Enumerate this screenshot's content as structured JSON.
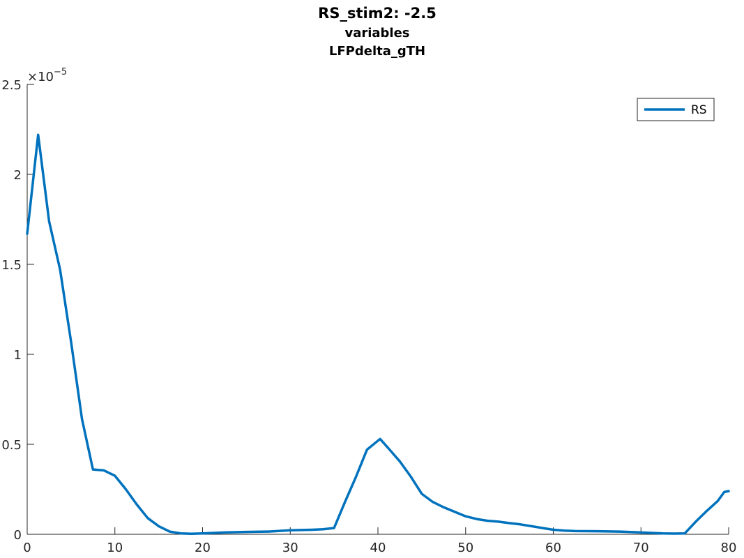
{
  "chart_data": {
    "type": "line",
    "title_lines": [
      "RS_stim2: -2.5",
      "variables",
      "LFPdelta_gTH"
    ],
    "xlabel": "",
    "ylabel": "",
    "xlim": [
      0,
      80
    ],
    "ylim": [
      0,
      2.5
    ],
    "y_exponent_label": "×10",
    "y_exponent_power": "−5",
    "xticks": [
      0,
      10,
      20,
      30,
      40,
      50,
      60,
      70,
      80
    ],
    "yticks": [
      0,
      0.5,
      1,
      1.5,
      2,
      2.5
    ],
    "xtick_labels": [
      "0",
      "10",
      "20",
      "30",
      "40",
      "50",
      "60",
      "70",
      "80"
    ],
    "ytick_labels": [
      "0",
      "0.5",
      "1",
      "1.5",
      "2",
      "2.5"
    ],
    "grid": false,
    "legend_position": "top-right",
    "line_color": "#0072BD",
    "series": [
      {
        "name": "RS",
        "x": [
          0,
          1.25,
          2.5,
          3.75,
          5,
          6.25,
          7.5,
          8.75,
          10,
          11.25,
          12.5,
          13.75,
          15,
          16.25,
          17.5,
          18.75,
          20,
          22.5,
          25,
          27.5,
          30,
          32.5,
          33.75,
          35,
          36.25,
          37.5,
          38.75,
          40.25,
          41.25,
          42.5,
          43.75,
          45,
          46.25,
          47.5,
          48.75,
          50,
          51.25,
          52.5,
          53.75,
          55,
          56.25,
          57.5,
          58.75,
          60,
          61.25,
          62.5,
          65,
          67.5,
          70,
          72.5,
          73.75,
          75,
          76.25,
          77.5,
          78.75,
          79.5,
          80
        ],
        "values": [
          1.67,
          2.22,
          1.74,
          1.47,
          1.07,
          0.64,
          0.36,
          0.355,
          0.325,
          0.25,
          0.165,
          0.09,
          0.045,
          0.015,
          0.005,
          0.003,
          0.005,
          0.01,
          0.013,
          0.015,
          0.022,
          0.025,
          0.028,
          0.035,
          0.18,
          0.32,
          0.47,
          0.53,
          0.475,
          0.405,
          0.32,
          0.225,
          0.18,
          0.15,
          0.125,
          0.1,
          0.085,
          0.075,
          0.07,
          0.062,
          0.055,
          0.045,
          0.035,
          0.025,
          0.02,
          0.018,
          0.017,
          0.015,
          0.01,
          0.005,
          0.004,
          0.005,
          0.07,
          0.13,
          0.185,
          0.235,
          0.24
        ]
      }
    ]
  }
}
